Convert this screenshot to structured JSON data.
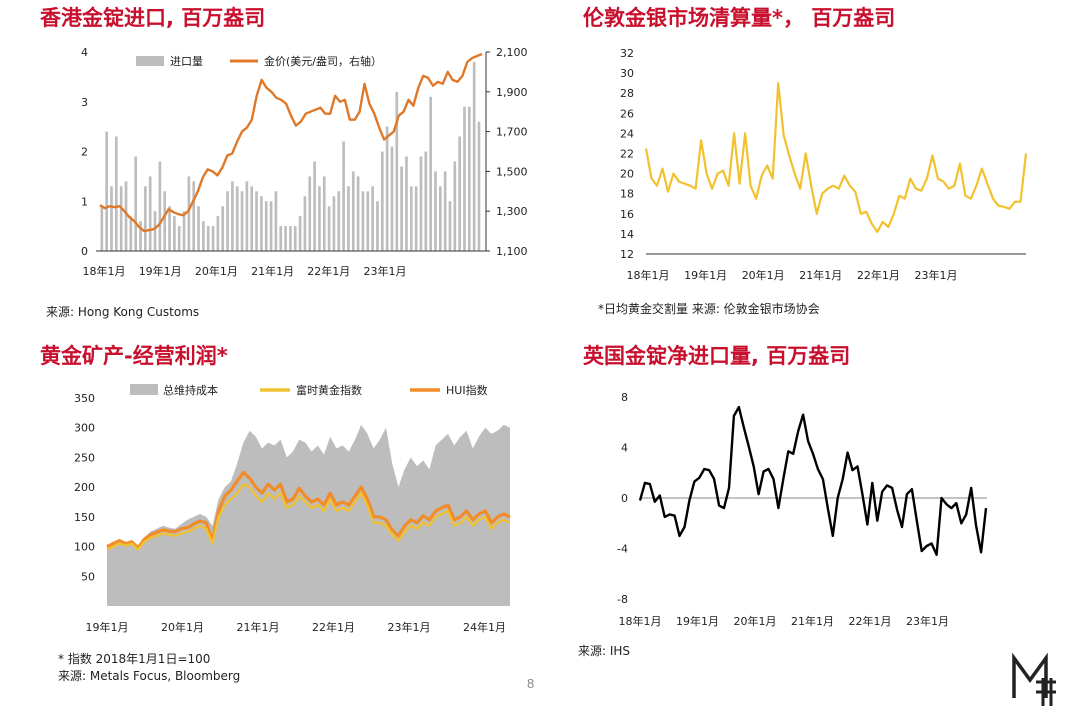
{
  "page": {
    "number": "8"
  },
  "colors": {
    "title": "#c8102e",
    "bars": "#bdbdbd",
    "gold_line": "#e0782a",
    "yellow_line": "#f2c12e",
    "orange_line": "#f28c28",
    "area": "#bdbdbd",
    "black_line": "#000000"
  },
  "chart_data": [
    {
      "id": "hk_imports",
      "type": "bar",
      "title": "香港金锭进口, 百万盎司",
      "source": "来源: Hong Kong Customs",
      "x_tick_labels": [
        "18年1月",
        "19年1月",
        "20年1月",
        "21年1月",
        "22年1月",
        "23年1月"
      ],
      "y_left": {
        "range": [
          0,
          4
        ],
        "ticks": [
          "0",
          "1",
          "2",
          "3",
          "4"
        ]
      },
      "y_right": {
        "range": [
          1100,
          2100
        ],
        "ticks": [
          "1,100",
          "1,300",
          "1,500",
          "1,700",
          "1,900",
          "2,100"
        ]
      },
      "series": [
        {
          "name": "进口量",
          "type": "bar",
          "axis": "left",
          "values": [
            0.9,
            2.4,
            1.3,
            2.3,
            1.3,
            1.4,
            0.7,
            1.9,
            0.6,
            1.3,
            1.5,
            0.8,
            1.8,
            1.2,
            0.9,
            0.7,
            0.5,
            0.8,
            1.5,
            1.4,
            0.9,
            0.6,
            0.5,
            0.5,
            0.7,
            0.9,
            1.2,
            1.4,
            1.3,
            1.2,
            1.4,
            1.3,
            1.2,
            1.1,
            1.0,
            1.0,
            1.2,
            0.5,
            0.5,
            0.5,
            0.5,
            0.7,
            1.1,
            1.5,
            1.8,
            1.3,
            1.5,
            0.9,
            1.1,
            1.2,
            2.2,
            1.3,
            1.6,
            1.5,
            1.2,
            1.2,
            1.3,
            1.0,
            2.0,
            2.5,
            2.1,
            3.2,
            1.7,
            1.9,
            1.3,
            1.3,
            1.9,
            2.0,
            3.1,
            1.6,
            1.3,
            1.6,
            1.0,
            1.8,
            2.3,
            2.9,
            2.9,
            3.8,
            2.6
          ]
        },
        {
          "name": "金价(美元/盎司，右轴）",
          "type": "line",
          "axis": "right",
          "values": [
            1330,
            1315,
            1325,
            1320,
            1325,
            1300,
            1270,
            1250,
            1220,
            1200,
            1205,
            1210,
            1230,
            1270,
            1310,
            1295,
            1285,
            1280,
            1300,
            1350,
            1400,
            1470,
            1510,
            1500,
            1480,
            1520,
            1580,
            1590,
            1650,
            1700,
            1720,
            1760,
            1880,
            1960,
            1920,
            1900,
            1870,
            1860,
            1840,
            1780,
            1730,
            1750,
            1790,
            1800,
            1810,
            1820,
            1790,
            1790,
            1880,
            1850,
            1860,
            1760,
            1760,
            1800,
            1940,
            1840,
            1790,
            1720,
            1660,
            1680,
            1700,
            1780,
            1800,
            1860,
            1830,
            1920,
            1980,
            1970,
            1930,
            1950,
            1940,
            2000,
            1960,
            1950,
            1980,
            2050,
            2070,
            2080,
            2090
          ]
        }
      ]
    },
    {
      "id": "lbma_clearing",
      "type": "line",
      "title": "伦敦金银市场清算量*， 百万盎司",
      "source": "*日均黄金交割量 来源: 伦敦金银市场协会",
      "x_tick_labels": [
        "18年1月",
        "19年1月",
        "20年1月",
        "21年1月",
        "22年1月",
        "23年1月"
      ],
      "y": {
        "range": [
          12,
          32
        ],
        "ticks": [
          "12",
          "14",
          "16",
          "18",
          "20",
          "22",
          "24",
          "26",
          "28",
          "30",
          "32"
        ]
      },
      "series": [
        {
          "values": [
            22.5,
            19.5,
            18.8,
            20.5,
            18.2,
            20,
            19.2,
            19,
            18.8,
            18.5,
            23.3,
            20,
            18.5,
            20,
            20.3,
            18.8,
            24,
            19,
            24,
            18.8,
            17.5,
            19.8,
            20.8,
            19.5,
            29,
            23.8,
            21.8,
            20,
            18.5,
            22,
            18.8,
            16,
            18,
            18.5,
            18.8,
            18.5,
            19.8,
            18.8,
            18.2,
            16,
            16.2,
            15,
            14.2,
            15.2,
            14.7,
            16,
            17.8,
            17.5,
            19.5,
            18.5,
            18.3,
            19.5,
            21.8,
            19.5,
            19.2,
            18.5,
            18.8,
            21,
            17.8,
            17.5,
            18.8,
            20.5,
            19,
            17.5,
            16.8,
            16.7,
            16.5,
            17.2,
            17.2,
            22
          ]
        }
      ]
    },
    {
      "id": "gold_miners",
      "type": "area",
      "title": "黄金矿产-经营利润*",
      "source_lines": [
        "* 指数 2018年1月1日=100",
        "来源: Metals Focus, Bloomberg"
      ],
      "x_tick_labels": [
        "19年1月",
        "20年1月",
        "21年1月",
        "22年1月",
        "23年1月",
        "24年1月"
      ],
      "y": {
        "range": [
          0,
          350
        ],
        "ticks": [
          "50",
          "100",
          "150",
          "200",
          "250",
          "300",
          "350"
        ]
      },
      "series": [
        {
          "name": "总维持成本",
          "type": "area",
          "values": [
            100,
            105,
            108,
            105,
            110,
            98,
            115,
            125,
            130,
            135,
            132,
            130,
            138,
            145,
            150,
            155,
            150,
            135,
            180,
            200,
            210,
            240,
            275,
            295,
            285,
            265,
            275,
            270,
            280,
            250,
            260,
            280,
            275,
            260,
            270,
            255,
            285,
            265,
            270,
            260,
            280,
            305,
            290,
            265,
            280,
            300,
            240,
            200,
            230,
            250,
            235,
            245,
            230,
            270,
            280,
            290,
            270,
            285,
            295,
            265,
            285,
            300,
            290,
            295,
            305,
            300
          ]
        },
        {
          "name": "富时黄金指数",
          "type": "line",
          "values": [
            95,
            100,
            105,
            102,
            105,
            95,
            108,
            115,
            118,
            122,
            120,
            118,
            122,
            125,
            130,
            135,
            130,
            105,
            150,
            170,
            180,
            190,
            205,
            200,
            185,
            175,
            190,
            180,
            190,
            165,
            170,
            185,
            175,
            165,
            170,
            160,
            180,
            160,
            165,
            160,
            175,
            190,
            170,
            140,
            140,
            135,
            120,
            110,
            125,
            135,
            130,
            140,
            135,
            150,
            155,
            160,
            135,
            140,
            150,
            135,
            145,
            150,
            130,
            140,
            145,
            140
          ]
        },
        {
          "name": "HUI指数",
          "type": "line",
          "values": [
            100,
            105,
            110,
            105,
            108,
            98,
            112,
            120,
            124,
            128,
            126,
            125,
            130,
            132,
            138,
            143,
            140,
            110,
            160,
            185,
            195,
            210,
            225,
            215,
            200,
            190,
            205,
            195,
            205,
            175,
            180,
            198,
            185,
            175,
            180,
            170,
            190,
            170,
            175,
            170,
            185,
            200,
            180,
            150,
            150,
            145,
            128,
            118,
            135,
            145,
            140,
            152,
            145,
            160,
            165,
            170,
            145,
            150,
            160,
            145,
            155,
            160,
            140,
            150,
            155,
            150
          ]
        }
      ]
    },
    {
      "id": "uk_net_imports",
      "type": "line",
      "title": "英国金锭净进口量, 百万盎司",
      "source": "来源: IHS",
      "x_tick_labels": [
        "18年1月",
        "19年1月",
        "20年1月",
        "21年1月",
        "22年1月",
        "23年1月"
      ],
      "y": {
        "range": [
          -8,
          8
        ],
        "ticks": [
          "-8",
          "-4",
          "0",
          "4",
          "8"
        ]
      },
      "series": [
        {
          "values": [
            -0.2,
            1.2,
            1.1,
            -0.3,
            0.2,
            -1.5,
            -1.3,
            -1.4,
            -3,
            -2.3,
            -0.2,
            1.3,
            1.6,
            2.3,
            2.2,
            1.5,
            -0.6,
            -0.8,
            0.8,
            6.5,
            7.2,
            5.6,
            4.1,
            2.5,
            0.3,
            2.1,
            2.3,
            1.5,
            -0.8,
            1.5,
            3.7,
            3.5,
            5.3,
            6.6,
            4.5,
            3.5,
            2.3,
            1.5,
            -0.8,
            -3,
            0,
            1.5,
            3.6,
            2.2,
            2.5,
            0.3,
            -2.1,
            1.2,
            -1.8,
            0.5,
            1,
            0.8,
            -0.9,
            -2.3,
            0.3,
            0.7,
            -1.8,
            -4.2,
            -3.8,
            -3.6,
            -4.5,
            0,
            -0.5,
            -0.8,
            -0.4,
            -2,
            -1.3,
            0.8,
            -2.2,
            -4.3,
            -0.8
          ]
        }
      ]
    }
  ]
}
